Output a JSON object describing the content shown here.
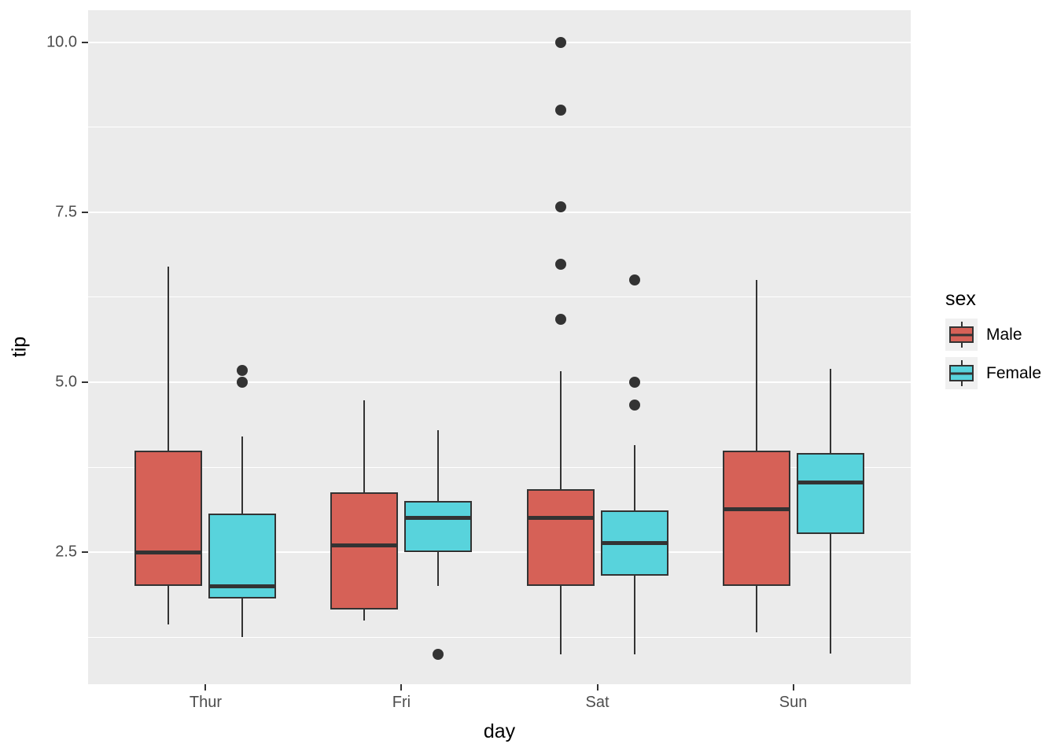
{
  "axes": {
    "y": {
      "title": "tip",
      "ticks": [
        {
          "label": "10.0",
          "value": 10.0
        },
        {
          "label": "7.5",
          "value": 7.5
        },
        {
          "label": "5.0",
          "value": 5.0
        },
        {
          "label": "2.5",
          "value": 2.5
        }
      ],
      "minor_ticks": [
        8.75,
        6.25,
        3.75,
        1.25
      ]
    },
    "x": {
      "title": "day",
      "tick_labels": [
        "Thur",
        "Fri",
        "Sat",
        "Sun"
      ]
    }
  },
  "legend": {
    "title": "sex",
    "entries": [
      {
        "label": "Male",
        "color": "#D66157"
      },
      {
        "label": "Female",
        "color": "#58D3DC"
      }
    ]
  },
  "colors": {
    "panel_bg": "#EBEBEB",
    "grid": "#FFFFFF",
    "box_border": "#333333",
    "outlier": "#333333",
    "tick_text": "#4D4D4D",
    "legend_key_bg": "#F0F0F0"
  },
  "chart_data": {
    "type": "boxplot",
    "title": "",
    "xlabel": "day",
    "ylabel": "tip",
    "hue": "sex",
    "categories": [
      "Thur",
      "Fri",
      "Sat",
      "Sun"
    ],
    "ylim": [
      0.56,
      10.47
    ],
    "xlim_units": [
      0.4,
      4.6
    ],
    "y_major_gridlines": [
      2.5,
      5.0,
      7.5,
      10.0
    ],
    "y_minor_gridlines": [
      1.25,
      3.75,
      6.25,
      8.75
    ],
    "grid": true,
    "legend_position": "right",
    "series": [
      {
        "name": "Male",
        "color": "#D66157",
        "boxes": [
          {
            "category": "Thur",
            "whisker_low": 1.44,
            "q1": 2.0,
            "median": 2.5,
            "q3": 4.0,
            "whisker_high": 6.7,
            "outliers": []
          },
          {
            "category": "Fri",
            "whisker_low": 1.5,
            "q1": 1.66,
            "median": 2.6,
            "q3": 3.38,
            "whisker_high": 4.73,
            "outliers": []
          },
          {
            "category": "Sat",
            "whisker_low": 1.0,
            "q1": 2.0,
            "median": 3.0,
            "q3": 3.43,
            "whisker_high": 5.16,
            "outliers": [
              5.92,
              6.73,
              7.58,
              9.0,
              10.0
            ]
          },
          {
            "category": "Sun",
            "whisker_low": 1.32,
            "q1": 2.0,
            "median": 3.13,
            "q3": 4.0,
            "whisker_high": 6.5,
            "outliers": []
          }
        ]
      },
      {
        "name": "Female",
        "color": "#58D3DC",
        "boxes": [
          {
            "category": "Thur",
            "whisker_low": 1.25,
            "q1": 1.82,
            "median": 2.0,
            "q3": 3.07,
            "whisker_high": 4.2,
            "outliers": [
              5.0,
              5.17
            ]
          },
          {
            "category": "Fri",
            "whisker_low": 2.0,
            "q1": 2.5,
            "median": 3.0,
            "q3": 3.25,
            "whisker_high": 4.3,
            "outliers": [
              1.0
            ]
          },
          {
            "category": "Sat",
            "whisker_low": 1.0,
            "q1": 2.15,
            "median": 2.64,
            "q3": 3.11,
            "whisker_high": 4.07,
            "outliers": [
              4.67,
              5.0,
              6.5
            ]
          },
          {
            "category": "Sun",
            "whisker_low": 1.01,
            "q1": 2.77,
            "median": 3.53,
            "q3": 3.96,
            "whisker_high": 5.2,
            "outliers": []
          }
        ]
      }
    ]
  }
}
